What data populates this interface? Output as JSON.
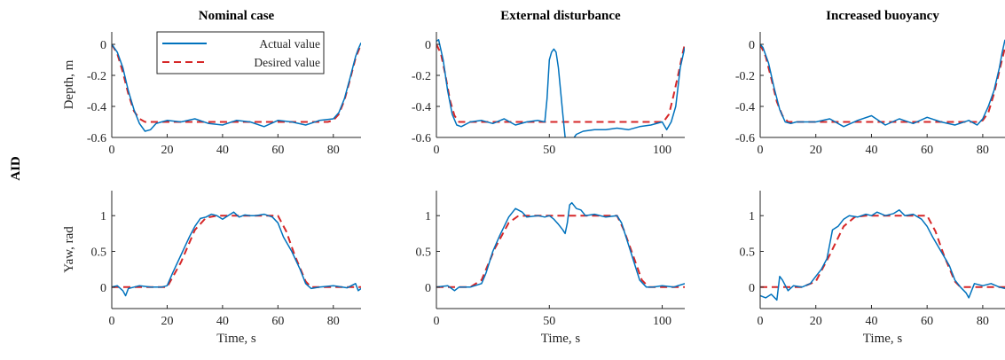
{
  "row_label": "AID",
  "legend": {
    "actual": "Actual value",
    "desired": "Desired value"
  },
  "colors": {
    "actual": "#0072BD",
    "desired": "#D62728",
    "axis": "#262626"
  },
  "chart_data": [
    {
      "id": "nominal-depth",
      "type": "line",
      "title": "Nominal case",
      "xlabel": "",
      "ylabel": "Depth, m",
      "xlim": [
        0,
        90
      ],
      "ylim": [
        -0.6,
        0.08
      ],
      "xticks": [
        0,
        20,
        40,
        60,
        80
      ],
      "yticks": [
        -0.6,
        -0.4,
        -0.2,
        0
      ],
      "ytick_labels": [
        "-0.6",
        "-0.4",
        "-0.2",
        "0"
      ],
      "legend": "top-left",
      "series": [
        {
          "name": "Actual value",
          "style": "solid",
          "x": [
            0,
            2,
            4,
            6,
            8,
            10,
            12,
            14,
            16,
            18,
            20,
            25,
            30,
            35,
            40,
            45,
            50,
            55,
            60,
            65,
            70,
            75,
            80,
            82,
            84,
            86,
            88,
            89,
            90
          ],
          "y": [
            0.0,
            -0.05,
            -0.15,
            -0.3,
            -0.42,
            -0.51,
            -0.56,
            -0.55,
            -0.51,
            -0.5,
            -0.49,
            -0.5,
            -0.48,
            -0.51,
            -0.52,
            -0.49,
            -0.5,
            -0.53,
            -0.49,
            -0.5,
            -0.52,
            -0.49,
            -0.48,
            -0.44,
            -0.35,
            -0.22,
            -0.08,
            -0.03,
            0.01
          ]
        },
        {
          "name": "Desired value",
          "style": "dashed",
          "x": [
            0,
            2,
            4,
            6,
            8,
            10,
            12,
            14,
            16,
            20,
            40,
            60,
            78,
            80,
            82,
            84,
            86,
            88,
            90
          ],
          "y": [
            0.0,
            -0.06,
            -0.18,
            -0.32,
            -0.43,
            -0.48,
            -0.5,
            -0.5,
            -0.5,
            -0.5,
            -0.5,
            -0.5,
            -0.5,
            -0.49,
            -0.45,
            -0.36,
            -0.23,
            -0.09,
            0.0
          ]
        }
      ]
    },
    {
      "id": "disturbance-depth",
      "type": "line",
      "title": "External disturbance",
      "xlabel": "",
      "ylabel": "",
      "xlim": [
        0,
        110
      ],
      "ylim": [
        -0.6,
        0.08
      ],
      "xticks": [
        0,
        50,
        100
      ],
      "yticks": [
        -0.6,
        -0.4,
        -0.2,
        0
      ],
      "ytick_labels": [
        "-0.6",
        "-0.4",
        "-0.2",
        "0"
      ],
      "series": [
        {
          "name": "Actual value",
          "style": "solid",
          "x": [
            0,
            1,
            3,
            5,
            7,
            9,
            11,
            15,
            20,
            25,
            30,
            35,
            40,
            45,
            48,
            49,
            50,
            51,
            52,
            53,
            54,
            55,
            56,
            57,
            58,
            60,
            62,
            65,
            70,
            75,
            80,
            85,
            90,
            95,
            100,
            102,
            104,
            106,
            108,
            110
          ],
          "y": [
            0.02,
            0.03,
            -0.1,
            -0.3,
            -0.45,
            -0.52,
            -0.53,
            -0.5,
            -0.49,
            -0.51,
            -0.48,
            -0.52,
            -0.5,
            -0.49,
            -0.5,
            -0.35,
            -0.1,
            -0.05,
            -0.03,
            -0.05,
            -0.15,
            -0.3,
            -0.45,
            -0.6,
            -0.65,
            -0.62,
            -0.58,
            -0.56,
            -0.55,
            -0.55,
            -0.54,
            -0.55,
            -0.53,
            -0.52,
            -0.5,
            -0.55,
            -0.5,
            -0.4,
            -0.15,
            -0.02
          ]
        },
        {
          "name": "Desired value",
          "style": "dashed",
          "x": [
            0,
            2,
            4,
            6,
            8,
            10,
            12,
            15,
            20,
            50,
            60,
            100,
            101,
            103,
            105,
            107,
            109,
            110
          ],
          "y": [
            0.0,
            -0.06,
            -0.2,
            -0.36,
            -0.46,
            -0.5,
            -0.5,
            -0.5,
            -0.5,
            -0.5,
            -0.5,
            -0.5,
            -0.49,
            -0.45,
            -0.33,
            -0.2,
            -0.06,
            0.0
          ]
        }
      ]
    },
    {
      "id": "buoyancy-depth",
      "type": "line",
      "title": "Increased buoyancy",
      "xlabel": "",
      "ylabel": "",
      "xlim": [
        0,
        88
      ],
      "ylim": [
        -0.6,
        0.08
      ],
      "xticks": [
        0,
        20,
        40,
        60,
        80
      ],
      "yticks": [
        -0.6,
        -0.4,
        -0.2,
        0
      ],
      "ytick_labels": [
        "-0.6",
        "-0.4",
        "-0.2",
        "0"
      ],
      "series": [
        {
          "name": "Actual value",
          "style": "solid",
          "x": [
            0,
            1,
            3,
            5,
            7,
            9,
            11,
            13,
            15,
            20,
            25,
            30,
            35,
            40,
            45,
            50,
            55,
            60,
            65,
            70,
            75,
            78,
            80,
            82,
            84,
            86,
            87,
            88
          ],
          "y": [
            0.0,
            -0.02,
            -0.12,
            -0.28,
            -0.42,
            -0.5,
            -0.51,
            -0.5,
            -0.5,
            -0.5,
            -0.48,
            -0.53,
            -0.49,
            -0.46,
            -0.52,
            -0.48,
            -0.51,
            -0.47,
            -0.5,
            -0.52,
            -0.49,
            -0.52,
            -0.48,
            -0.4,
            -0.3,
            -0.15,
            -0.05,
            0.03
          ]
        },
        {
          "name": "Desired value",
          "style": "dashed",
          "x": [
            0,
            2,
            4,
            6,
            8,
            10,
            12,
            15,
            20,
            40,
            60,
            78,
            80,
            82,
            84,
            86,
            88
          ],
          "y": [
            0.0,
            -0.08,
            -0.22,
            -0.37,
            -0.46,
            -0.5,
            -0.5,
            -0.5,
            -0.5,
            -0.5,
            -0.5,
            -0.5,
            -0.49,
            -0.44,
            -0.32,
            -0.17,
            -0.02
          ]
        }
      ]
    },
    {
      "id": "nominal-yaw",
      "type": "line",
      "title": "",
      "xlabel": "Time, s",
      "ylabel": "Yaw, rad",
      "xlim": [
        0,
        90
      ],
      "ylim": [
        -0.3,
        1.35
      ],
      "xticks": [
        0,
        20,
        40,
        60,
        80
      ],
      "yticks": [
        0,
        0.5,
        1
      ],
      "ytick_labels": [
        "0",
        "0.5",
        "1"
      ],
      "series": [
        {
          "name": "Actual value",
          "style": "solid",
          "x": [
            0,
            2,
            4,
            5,
            6,
            8,
            10,
            14,
            18,
            20,
            22,
            25,
            28,
            30,
            32,
            34,
            36,
            38,
            40,
            42,
            44,
            46,
            48,
            50,
            52,
            55,
            58,
            60,
            62,
            65,
            68,
            70,
            72,
            75,
            80,
            85,
            88,
            89,
            90
          ],
          "y": [
            0.0,
            0.02,
            -0.05,
            -0.12,
            -0.02,
            0.0,
            0.02,
            0.0,
            0.0,
            0.02,
            0.2,
            0.45,
            0.7,
            0.85,
            0.96,
            0.98,
            1.02,
            1.0,
            0.95,
            1.0,
            1.05,
            0.98,
            1.01,
            1.0,
            1.0,
            1.02,
            0.98,
            0.9,
            0.7,
            0.5,
            0.25,
            0.05,
            -0.02,
            0.0,
            0.02,
            -0.01,
            0.05,
            -0.05,
            -0.02
          ]
        },
        {
          "name": "Desired value",
          "style": "dashed",
          "x": [
            0,
            20,
            25,
            30,
            34,
            38,
            60,
            63,
            66,
            70,
            72,
            90
          ],
          "y": [
            0,
            0,
            0.35,
            0.8,
            0.97,
            1.0,
            1.0,
            0.78,
            0.45,
            0.08,
            0.0,
            0.0
          ]
        }
      ]
    },
    {
      "id": "disturbance-yaw",
      "type": "line",
      "title": "",
      "xlabel": "Time, s",
      "ylabel": "",
      "xlim": [
        0,
        110
      ],
      "ylim": [
        -0.3,
        1.35
      ],
      "xticks": [
        0,
        50,
        100
      ],
      "yticks": [
        0,
        0.5,
        1
      ],
      "ytick_labels": [
        "0",
        "0.5",
        "1"
      ],
      "series": [
        {
          "name": "Actual value",
          "style": "solid",
          "x": [
            0,
            5,
            8,
            10,
            15,
            20,
            22,
            25,
            28,
            30,
            32,
            35,
            38,
            40,
            45,
            48,
            50,
            52,
            54,
            56,
            57,
            58,
            59,
            60,
            62,
            64,
            66,
            70,
            75,
            80,
            82,
            84,
            86,
            88,
            90,
            93,
            96,
            100,
            105,
            110
          ],
          "y": [
            0.0,
            0.02,
            -0.05,
            0.0,
            0.0,
            0.05,
            0.2,
            0.5,
            0.72,
            0.85,
            0.98,
            1.1,
            1.05,
            0.98,
            1.0,
            0.98,
            1.0,
            0.95,
            0.88,
            0.8,
            0.75,
            0.9,
            1.15,
            1.18,
            1.1,
            1.08,
            1.0,
            1.02,
            0.98,
            1.0,
            0.9,
            0.7,
            0.5,
            0.3,
            0.1,
            0.0,
            0.0,
            0.02,
            0.0,
            0.05
          ]
        },
        {
          "name": "Desired value",
          "style": "dashed",
          "x": [
            0,
            15,
            20,
            26,
            32,
            36,
            40,
            80,
            83,
            87,
            91,
            94,
            110
          ],
          "y": [
            0,
            0,
            0.1,
            0.55,
            0.9,
            0.99,
            1.0,
            1.0,
            0.8,
            0.45,
            0.1,
            0.0,
            0.0
          ]
        }
      ]
    },
    {
      "id": "buoyancy-yaw",
      "type": "line",
      "title": "",
      "xlabel": "Time, s",
      "ylabel": "",
      "xlim": [
        0,
        88
      ],
      "ylim": [
        -0.3,
        1.35
      ],
      "xticks": [
        0,
        20,
        40,
        60,
        80
      ],
      "yticks": [
        0,
        0.5,
        1
      ],
      "ytick_labels": [
        "0",
        "0.5",
        "1"
      ],
      "series": [
        {
          "name": "Actual value",
          "style": "solid",
          "x": [
            0,
            2,
            4,
            6,
            7,
            8,
            10,
            12,
            15,
            18,
            20,
            22,
            24,
            25,
            26,
            28,
            30,
            32,
            35,
            38,
            40,
            42,
            45,
            48,
            50,
            52,
            55,
            58,
            60,
            62,
            65,
            68,
            70,
            72,
            74,
            75,
            77,
            80,
            83,
            86,
            88
          ],
          "y": [
            -0.12,
            -0.15,
            -0.1,
            -0.18,
            0.15,
            0.1,
            -0.05,
            0.02,
            0.0,
            0.05,
            0.15,
            0.25,
            0.4,
            0.6,
            0.8,
            0.85,
            0.95,
            1.0,
            0.98,
            1.02,
            1.0,
            1.05,
            1.0,
            1.03,
            1.08,
            1.0,
            1.02,
            0.95,
            0.85,
            0.7,
            0.5,
            0.3,
            0.1,
            0.0,
            -0.08,
            -0.15,
            0.05,
            0.02,
            0.05,
            0.0,
            -0.02
          ]
        },
        {
          "name": "Desired value",
          "style": "dashed",
          "x": [
            0,
            15,
            20,
            25,
            30,
            34,
            38,
            60,
            63,
            66,
            70,
            72,
            88
          ],
          "y": [
            0,
            0,
            0.08,
            0.45,
            0.85,
            0.98,
            1.0,
            1.0,
            0.78,
            0.45,
            0.08,
            0.0,
            0.0
          ]
        }
      ]
    }
  ]
}
